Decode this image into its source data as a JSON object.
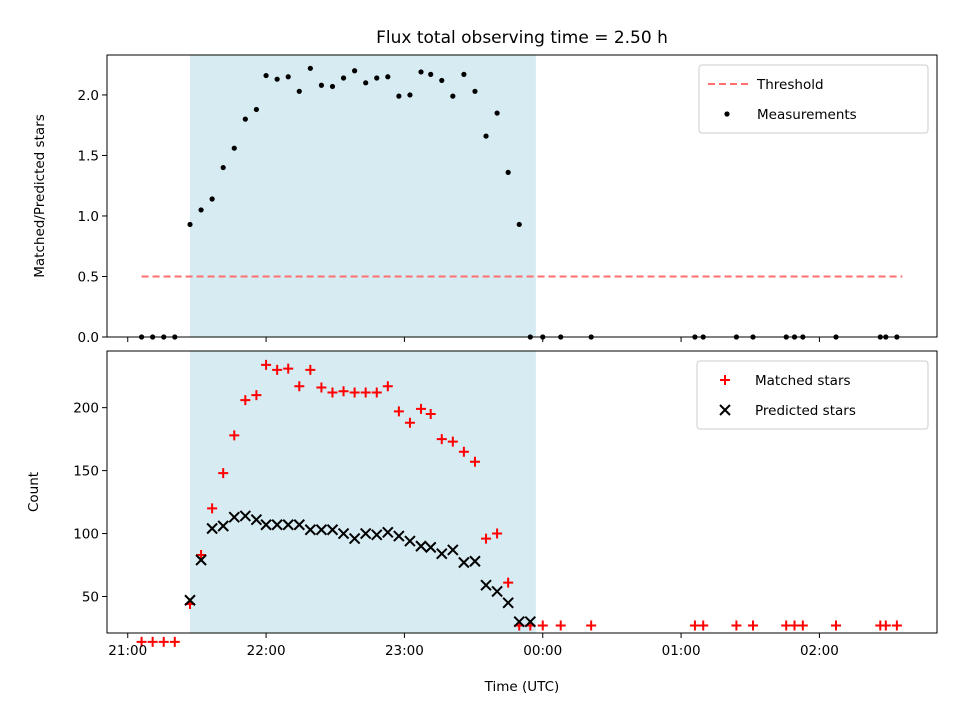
{
  "chart_data": [
    {
      "type": "scatter",
      "title": "Flux total observing time = 2.50 h",
      "ylabel": "Matched/Predicted stars",
      "ylim": [
        0,
        2.33
      ],
      "yticks": [
        0.0,
        0.5,
        1.0,
        1.5,
        2.0
      ],
      "ytick_labels": [
        "0.0",
        "0.5",
        "1.0",
        "1.5",
        "2.0"
      ],
      "x_unit": "hours since 21:00 UTC",
      "xlim": [
        -0.15,
        5.85
      ],
      "shaded_interval": [
        0.45,
        2.95
      ],
      "shade_color": "#add8e6",
      "legend": "top-right",
      "series": [
        {
          "name": "Threshold",
          "kind": "line",
          "style": "dashed",
          "color": "#ff6f6f",
          "x": [
            0.1,
            5.6
          ],
          "y": [
            0.5,
            0.5
          ]
        },
        {
          "name": "Measurements",
          "kind": "dot",
          "color": "#000000",
          "x": [
            0.1,
            0.18,
            0.26,
            0.34,
            0.45,
            0.53,
            0.61,
            0.69,
            0.77,
            0.85,
            0.93,
            1.0,
            1.08,
            1.16,
            1.24,
            1.32,
            1.4,
            1.48,
            1.56,
            1.64,
            1.72,
            1.8,
            1.88,
            1.96,
            2.04,
            2.12,
            2.19,
            2.27,
            2.35,
            2.43,
            2.51,
            2.59,
            2.67,
            2.75,
            2.83,
            2.91,
            3.0,
            3.13,
            3.35,
            4.1,
            4.16,
            4.4,
            4.52,
            4.76,
            4.82,
            4.88,
            5.12,
            5.44,
            5.48,
            5.56
          ],
          "y": [
            0,
            0,
            0,
            0,
            0.93,
            1.05,
            1.14,
            1.4,
            1.56,
            1.8,
            1.88,
            2.16,
            2.13,
            2.15,
            2.03,
            2.22,
            2.08,
            2.07,
            2.14,
            2.2,
            2.1,
            2.14,
            2.15,
            1.99,
            2.0,
            2.19,
            2.17,
            2.12,
            1.99,
            2.17,
            2.03,
            1.66,
            1.85,
            1.36,
            0.93,
            0,
            0,
            0,
            0,
            0,
            0,
            0,
            0,
            0,
            0,
            0,
            0,
            0,
            0,
            0
          ]
        }
      ]
    },
    {
      "type": "scatter",
      "xlabel": "Time (UTC)",
      "ylabel": "Count",
      "ylim": [
        21,
        245
      ],
      "yticks": [
        50,
        100,
        150,
        200
      ],
      "ytick_labels": [
        "50",
        "100",
        "150",
        "200"
      ],
      "x_unit": "hours since 21:00 UTC",
      "xlim": [
        -0.15,
        5.85
      ],
      "xticks": [
        0,
        1,
        2,
        3,
        4,
        5
      ],
      "xtick_labels": [
        "21:00",
        "22:00",
        "23:00",
        "00:00",
        "01:00",
        "02:00"
      ],
      "shaded_interval": [
        0.45,
        2.95
      ],
      "shade_color": "#add8e6",
      "legend": "top-right",
      "series": [
        {
          "name": "Matched stars",
          "kind": "plus",
          "color": "#ff0000",
          "x": [
            0.1,
            0.18,
            0.26,
            0.34,
            0.45,
            0.53,
            0.61,
            0.69,
            0.77,
            0.85,
            0.93,
            1.0,
            1.08,
            1.16,
            1.24,
            1.32,
            1.4,
            1.48,
            1.56,
            1.64,
            1.72,
            1.8,
            1.88,
            1.96,
            2.04,
            2.12,
            2.19,
            2.27,
            2.35,
            2.43,
            2.51,
            2.59,
            2.67,
            2.75,
            2.83,
            2.91,
            3.0,
            3.13,
            3.35,
            4.1,
            4.16,
            4.4,
            4.52,
            4.76,
            4.82,
            4.88,
            5.12,
            5.44,
            5.48,
            5.56
          ],
          "y": [
            14,
            14,
            14,
            14,
            44,
            83,
            120,
            148,
            178,
            206,
            210,
            234,
            230,
            231,
            217,
            230,
            216,
            212,
            213,
            212,
            212,
            212,
            217,
            197,
            188,
            199,
            195,
            175,
            173,
            165,
            157,
            96,
            100,
            61,
            27,
            27,
            27,
            27,
            27,
            27,
            27,
            27,
            27,
            27,
            27,
            27,
            27,
            27,
            27,
            27
          ]
        },
        {
          "name": "Predicted stars",
          "kind": "cross",
          "color": "#000000",
          "x": [
            0.45,
            0.53,
            0.61,
            0.69,
            0.77,
            0.85,
            0.93,
            1.0,
            1.08,
            1.16,
            1.24,
            1.32,
            1.4,
            1.48,
            1.56,
            1.64,
            1.72,
            1.8,
            1.88,
            1.96,
            2.04,
            2.12,
            2.19,
            2.27,
            2.35,
            2.43,
            2.51,
            2.59,
            2.67,
            2.75,
            2.83,
            2.91
          ],
          "y": [
            47,
            79,
            104,
            106,
            113,
            114,
            111,
            107,
            107,
            107,
            107,
            103,
            103,
            103,
            100,
            96,
            100,
            99,
            101,
            98,
            94,
            90,
            89,
            84,
            87,
            77,
            78,
            59,
            54,
            45,
            30,
            30
          ]
        }
      ]
    }
  ]
}
